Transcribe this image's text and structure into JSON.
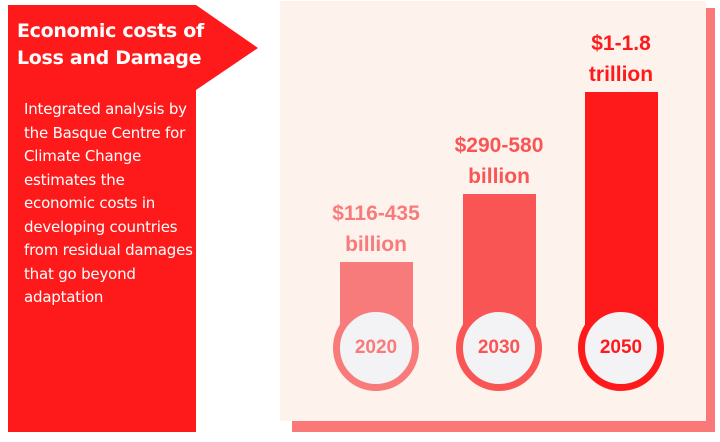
{
  "panel": {
    "title_line1": "Economic costs of",
    "title_line2": "Loss and Damage",
    "description": "Integrated analysis by the Basque Centre for Climate Change estimates the economic costs in developing countries from residual damages that go beyond adaptation",
    "color": "#fe1a1a"
  },
  "chart_data": {
    "type": "bar",
    "categories": [
      "2020",
      "2030",
      "2050"
    ],
    "series": [
      {
        "values_low": [
          116,
          290,
          1000
        ],
        "values_high": [
          435,
          580,
          1800
        ],
        "unit": "billion USD"
      }
    ],
    "data_labels": [
      {
        "line1": "$116-435",
        "line2": "billion"
      },
      {
        "line1": "$290-580",
        "line2": "billion"
      },
      {
        "line1": "$1-1.8",
        "line2": "trillion"
      }
    ],
    "colors": [
      "#f87b7b",
      "#f95555",
      "#fe1a1a"
    ],
    "grid": false,
    "axes_visible": false,
    "background": "#fdf3ec"
  }
}
